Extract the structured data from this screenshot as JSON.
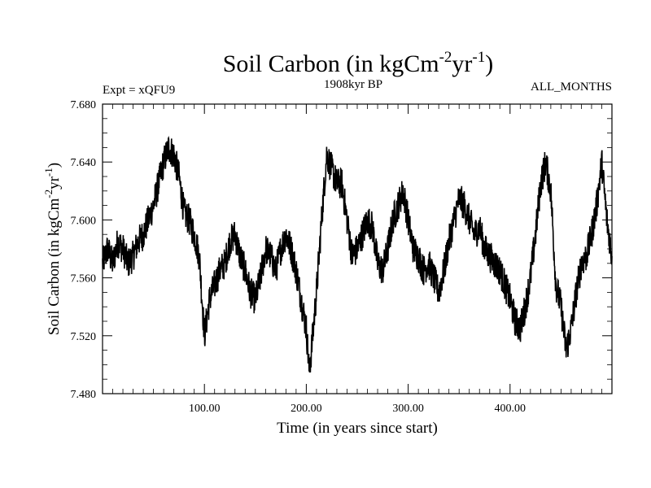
{
  "chart_data": {
    "type": "line",
    "title_main": "Soil Carbon (in kgCm",
    "title_exp1": "-2",
    "title_mid": "yr",
    "title_exp2": "-1",
    "title_close": ")",
    "expt_label": "Expt = xQFU9",
    "period_label": "1908kyr BP",
    "months_label": "ALL_MONTHS",
    "xlabel": "Time (in years since start)",
    "ylabel_main": "Soil Carbon (in kgCm",
    "ylabel_exp1": "-2",
    "ylabel_mid": "yr",
    "ylabel_exp2": "-1",
    "ylabel_close": ")",
    "xlim": [
      0,
      500
    ],
    "ylim": [
      7.48,
      7.68
    ],
    "xticks": [
      {
        "v": 100,
        "label": "100.00"
      },
      {
        "v": 200,
        "label": "200.00"
      },
      {
        "v": 300,
        "label": "300.00"
      },
      {
        "v": 400,
        "label": "400.00"
      }
    ],
    "yticks": [
      {
        "v": 7.48,
        "label": "7.480"
      },
      {
        "v": 7.52,
        "label": "7.520"
      },
      {
        "v": 7.56,
        "label": "7.560"
      },
      {
        "v": 7.6,
        "label": "7.600"
      },
      {
        "v": 7.64,
        "label": "7.640"
      },
      {
        "v": 7.68,
        "label": "7.680"
      }
    ],
    "series": [
      {
        "name": "Soil Carbon",
        "x": [
          0,
          5,
          10,
          15,
          20,
          25,
          30,
          35,
          40,
          45,
          50,
          55,
          60,
          65,
          70,
          75,
          80,
          85,
          90,
          95,
          100,
          102,
          105,
          110,
          115,
          120,
          125,
          130,
          135,
          140,
          145,
          150,
          155,
          160,
          165,
          170,
          175,
          180,
          185,
          190,
          195,
          200,
          203,
          205,
          210,
          215,
          220,
          225,
          230,
          235,
          240,
          245,
          250,
          255,
          260,
          265,
          270,
          275,
          280,
          285,
          290,
          295,
          300,
          305,
          310,
          315,
          320,
          325,
          330,
          335,
          340,
          345,
          350,
          355,
          360,
          365,
          370,
          375,
          380,
          385,
          390,
          395,
          400,
          405,
          410,
          415,
          420,
          425,
          430,
          435,
          440,
          445,
          450,
          455,
          460,
          465,
          470,
          475,
          480,
          485,
          490,
          495,
          500
        ],
        "y": [
          7.57,
          7.58,
          7.57,
          7.585,
          7.58,
          7.57,
          7.575,
          7.585,
          7.59,
          7.6,
          7.61,
          7.625,
          7.64,
          7.65,
          7.645,
          7.63,
          7.605,
          7.6,
          7.59,
          7.575,
          7.52,
          7.53,
          7.545,
          7.555,
          7.565,
          7.57,
          7.585,
          7.59,
          7.575,
          7.565,
          7.55,
          7.545,
          7.56,
          7.58,
          7.575,
          7.565,
          7.58,
          7.59,
          7.58,
          7.565,
          7.545,
          7.525,
          7.495,
          7.51,
          7.55,
          7.6,
          7.645,
          7.635,
          7.625,
          7.625,
          7.6,
          7.575,
          7.58,
          7.59,
          7.6,
          7.595,
          7.57,
          7.565,
          7.58,
          7.6,
          7.61,
          7.62,
          7.6,
          7.58,
          7.575,
          7.565,
          7.57,
          7.56,
          7.55,
          7.565,
          7.585,
          7.6,
          7.615,
          7.61,
          7.6,
          7.59,
          7.595,
          7.58,
          7.575,
          7.57,
          7.565,
          7.555,
          7.545,
          7.53,
          7.525,
          7.54,
          7.56,
          7.59,
          7.625,
          7.64,
          7.62,
          7.555,
          7.54,
          7.51,
          7.525,
          7.55,
          7.57,
          7.575,
          7.59,
          7.61,
          7.64,
          7.6,
          7.575
        ]
      }
    ]
  }
}
